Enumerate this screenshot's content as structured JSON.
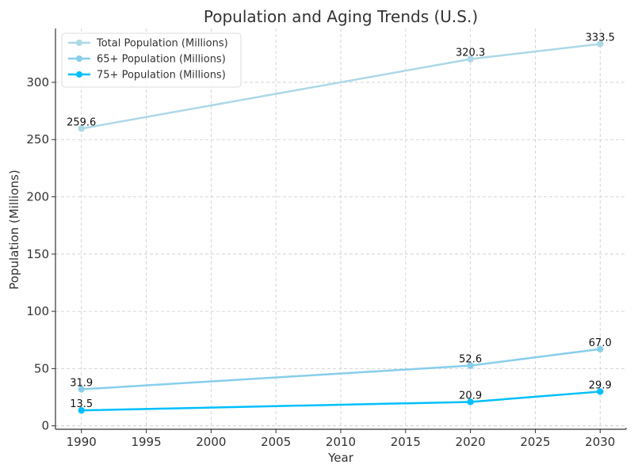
{
  "chart_data": {
    "type": "line",
    "title": "Population and Aging Trends (U.S.)",
    "xlabel": "Year",
    "ylabel": "Population (Millions)",
    "x": [
      1990,
      2020,
      2030
    ],
    "xlim": [
      1988,
      2032
    ],
    "ylim": [
      -3,
      347
    ],
    "xticks": [
      1990,
      1995,
      2000,
      2005,
      2010,
      2015,
      2020,
      2025,
      2030
    ],
    "yticks": [
      0,
      50,
      100,
      150,
      200,
      250,
      300
    ],
    "grid": true,
    "legend": "top-left",
    "series": [
      {
        "name": "Total Population (Millions)",
        "values": [
          259.6,
          320.3,
          333.5
        ],
        "labels": [
          "259.6",
          "320.3",
          "333.5"
        ],
        "color": "#add8e6"
      },
      {
        "name": "65+ Population (Millions)",
        "values": [
          31.9,
          52.6,
          67.0
        ],
        "labels": [
          "31.9",
          "52.6",
          "67.0"
        ],
        "color": "#87ceeb"
      },
      {
        "name": "75+ Population (Millions)",
        "values": [
          13.5,
          20.9,
          29.9
        ],
        "labels": [
          "13.5",
          "20.9",
          "29.9"
        ],
        "color": "#00bfff"
      }
    ]
  }
}
